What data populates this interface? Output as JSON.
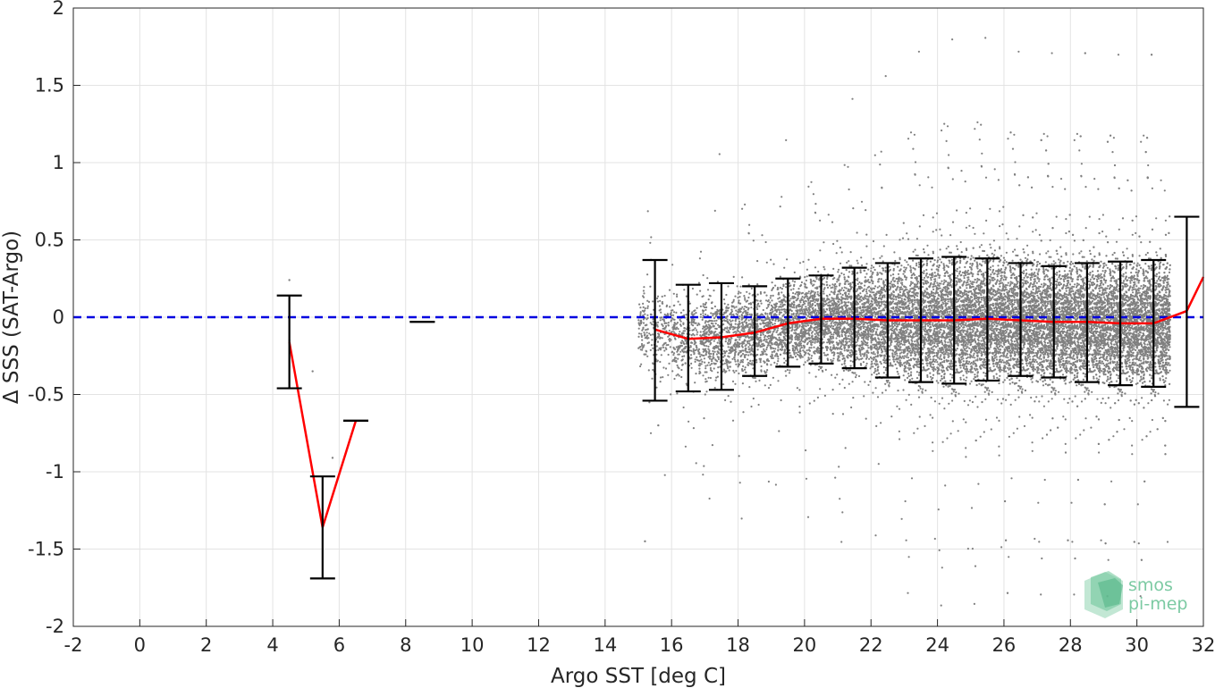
{
  "chart_data": {
    "type": "scatter",
    "title": "",
    "xlabel": "Argo SST [deg C]",
    "ylabel": "Δ SSS (SAT-Argo)",
    "xlim": [
      -2,
      32
    ],
    "ylim": [
      -2,
      2
    ],
    "xticks": [
      "-2",
      "0",
      "2",
      "4",
      "6",
      "8",
      "10",
      "12",
      "14",
      "16",
      "18",
      "20",
      "22",
      "24",
      "26",
      "28",
      "30",
      "32"
    ],
    "yticks": [
      "2",
      "1.5",
      "1",
      "0.5",
      "0",
      "-0.5",
      "-1",
      "-1.5",
      "-2"
    ],
    "grid": true,
    "reference_line": {
      "y": 0,
      "style": "dashed",
      "color": "#0000e0"
    },
    "series": [
      {
        "kind": "scatter-cloud",
        "color": "#808080",
        "description_density": [
          {
            "x": 15.5,
            "mean": -0.08,
            "spread": 0.28
          },
          {
            "x": 16.5,
            "mean": -0.14,
            "spread": 0.3
          },
          {
            "x": 17.5,
            "mean": -0.13,
            "spread": 0.3
          },
          {
            "x": 18.5,
            "mean": -0.1,
            "spread": 0.3
          },
          {
            "x": 19.5,
            "mean": -0.04,
            "spread": 0.3
          },
          {
            "x": 20.5,
            "mean": -0.01,
            "spread": 0.32
          },
          {
            "x": 21.5,
            "mean": -0.01,
            "spread": 0.36
          },
          {
            "x": 22.5,
            "mean": -0.02,
            "spread": 0.4
          },
          {
            "x": 23.5,
            "mean": -0.02,
            "spread": 0.44
          },
          {
            "x": 24.5,
            "mean": -0.02,
            "spread": 0.46
          },
          {
            "x": 25.5,
            "mean": -0.01,
            "spread": 0.46
          },
          {
            "x": 26.5,
            "mean": -0.02,
            "spread": 0.44
          },
          {
            "x": 27.5,
            "mean": -0.03,
            "spread": 0.44
          },
          {
            "x": 28.5,
            "mean": -0.03,
            "spread": 0.44
          },
          {
            "x": 29.5,
            "mean": -0.04,
            "spread": 0.44
          },
          {
            "x": 30.5,
            "mean": -0.04,
            "spread": 0.44
          }
        ]
      },
      {
        "kind": "line",
        "color": "#ff0000",
        "x": [
          4.5,
          5.5,
          6.5
        ],
        "y": [
          -0.16,
          -1.36,
          -0.67
        ]
      },
      {
        "kind": "line",
        "color": "#ff0000",
        "x": [
          15.5,
          16.5,
          17.5,
          18.5,
          19.5,
          20.5,
          21.5,
          22.5,
          23.5,
          24.5,
          25.5,
          26.5,
          27.5,
          28.5,
          29.5,
          30.5,
          31.5,
          32
        ],
        "y": [
          -0.08,
          -0.14,
          -0.13,
          -0.1,
          -0.04,
          -0.01,
          -0.01,
          -0.02,
          -0.02,
          -0.02,
          -0.01,
          -0.02,
          -0.03,
          -0.03,
          -0.04,
          -0.04,
          0.04,
          0.26
        ]
      },
      {
        "kind": "errorbar",
        "color": "#000000",
        "bars": [
          {
            "x": 4.5,
            "low": -0.46,
            "high": 0.14
          },
          {
            "x": 5.5,
            "low": -1.69,
            "high": -1.03
          },
          {
            "x": 6.5,
            "low": -0.67,
            "high": -0.67
          },
          {
            "x": 8.5,
            "low": -0.03,
            "high": -0.03
          },
          {
            "x": 15.5,
            "low": -0.54,
            "high": 0.37
          },
          {
            "x": 16.5,
            "low": -0.48,
            "high": 0.21
          },
          {
            "x": 17.5,
            "low": -0.47,
            "high": 0.22
          },
          {
            "x": 18.5,
            "low": -0.38,
            "high": 0.2
          },
          {
            "x": 19.5,
            "low": -0.32,
            "high": 0.25
          },
          {
            "x": 20.5,
            "low": -0.3,
            "high": 0.27
          },
          {
            "x": 21.5,
            "low": -0.33,
            "high": 0.32
          },
          {
            "x": 22.5,
            "low": -0.39,
            "high": 0.35
          },
          {
            "x": 23.5,
            "low": -0.42,
            "high": 0.38
          },
          {
            "x": 24.5,
            "low": -0.43,
            "high": 0.39
          },
          {
            "x": 25.5,
            "low": -0.41,
            "high": 0.38
          },
          {
            "x": 26.5,
            "low": -0.38,
            "high": 0.35
          },
          {
            "x": 27.5,
            "low": -0.39,
            "high": 0.33
          },
          {
            "x": 28.5,
            "low": -0.42,
            "high": 0.35
          },
          {
            "x": 29.5,
            "low": -0.44,
            "high": 0.36
          },
          {
            "x": 30.5,
            "low": -0.45,
            "high": 0.37
          },
          {
            "x": 31.5,
            "low": -0.58,
            "high": 0.65
          }
        ]
      }
    ]
  },
  "logo": {
    "line1": "smos",
    "line2": "pi-mep"
  }
}
